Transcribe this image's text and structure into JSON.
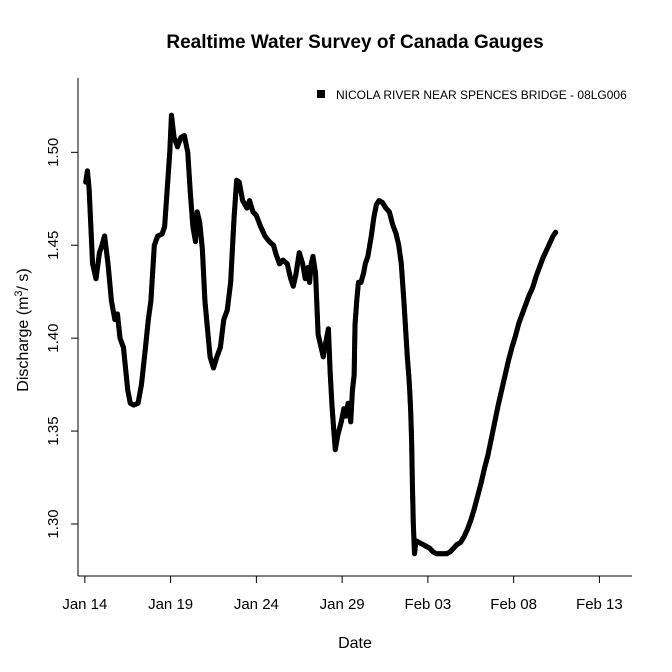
{
  "chart_data": {
    "type": "scatter",
    "title": "Realtime Water Survey of Canada Gauges",
    "xlabel": "Date",
    "ylabel": {
      "prefix": "Discharge (m",
      "superscript": "3",
      "suffix": "/ s)"
    },
    "legend": {
      "position": "top-right",
      "entries": [
        "NICOLA RIVER NEAR SPENCES BRIDGE - 08LG006"
      ]
    },
    "grid": false,
    "x_axis": {
      "start_date": "2014-01-14",
      "xlim": [
        -0.4,
        31.9
      ],
      "ticks": [
        0,
        5,
        10,
        15,
        20,
        25,
        30
      ],
      "tick_labels": [
        "Jan 14",
        "Jan 19",
        "Jan 24",
        "Jan 29",
        "Feb 03",
        "Feb 08",
        "Feb 13"
      ]
    },
    "y_axis": {
      "ylim": [
        1.272,
        1.54
      ],
      "ticks": [
        1.3,
        1.35,
        1.4,
        1.45,
        1.5
      ],
      "tick_labels": [
        "1.30",
        "1.35",
        "1.40",
        "1.45",
        "1.50"
      ]
    },
    "series": [
      {
        "name": "NICOLA RIVER NEAR SPENCES BRIDGE - 08LG006",
        "color": "#000000",
        "points": [
          [
            0.05,
            1.484
          ],
          [
            0.15,
            1.49
          ],
          [
            0.25,
            1.48
          ],
          [
            0.45,
            1.44
          ],
          [
            0.65,
            1.432
          ],
          [
            0.85,
            1.446
          ],
          [
            1.0,
            1.45
          ],
          [
            1.15,
            1.455
          ],
          [
            1.35,
            1.44
          ],
          [
            1.55,
            1.42
          ],
          [
            1.75,
            1.41
          ],
          [
            1.9,
            1.413
          ],
          [
            2.05,
            1.4
          ],
          [
            2.25,
            1.395
          ],
          [
            2.5,
            1.372
          ],
          [
            2.65,
            1.365
          ],
          [
            2.85,
            1.364
          ],
          [
            3.1,
            1.365
          ],
          [
            3.3,
            1.375
          ],
          [
            3.5,
            1.392
          ],
          [
            3.7,
            1.41
          ],
          [
            3.85,
            1.42
          ],
          [
            4.05,
            1.45
          ],
          [
            4.25,
            1.455
          ],
          [
            4.5,
            1.456
          ],
          [
            4.65,
            1.46
          ],
          [
            4.8,
            1.48
          ],
          [
            4.95,
            1.5
          ],
          [
            5.05,
            1.52
          ],
          [
            5.2,
            1.508
          ],
          [
            5.4,
            1.503
          ],
          [
            5.6,
            1.508
          ],
          [
            5.8,
            1.509
          ],
          [
            6.0,
            1.5
          ],
          [
            6.15,
            1.478
          ],
          [
            6.3,
            1.46
          ],
          [
            6.45,
            1.452
          ],
          [
            6.55,
            1.468
          ],
          [
            6.7,
            1.462
          ],
          [
            6.85,
            1.448
          ],
          [
            7.0,
            1.42
          ],
          [
            7.15,
            1.405
          ],
          [
            7.3,
            1.39
          ],
          [
            7.5,
            1.384
          ],
          [
            7.7,
            1.39
          ],
          [
            7.9,
            1.395
          ],
          [
            8.1,
            1.41
          ],
          [
            8.3,
            1.415
          ],
          [
            8.5,
            1.43
          ],
          [
            8.7,
            1.465
          ],
          [
            8.85,
            1.485
          ],
          [
            9.0,
            1.484
          ],
          [
            9.2,
            1.474
          ],
          [
            9.45,
            1.47
          ],
          [
            9.6,
            1.474
          ],
          [
            9.8,
            1.468
          ],
          [
            10.0,
            1.466
          ],
          [
            10.25,
            1.46
          ],
          [
            10.5,
            1.455
          ],
          [
            10.75,
            1.452
          ],
          [
            11.0,
            1.45
          ],
          [
            11.15,
            1.445
          ],
          [
            11.35,
            1.44
          ],
          [
            11.55,
            1.442
          ],
          [
            11.8,
            1.44
          ],
          [
            12.0,
            1.432
          ],
          [
            12.15,
            1.428
          ],
          [
            12.3,
            1.434
          ],
          [
            12.5,
            1.446
          ],
          [
            12.7,
            1.44
          ],
          [
            12.85,
            1.432
          ],
          [
            13.0,
            1.438
          ],
          [
            13.1,
            1.43
          ],
          [
            13.2,
            1.44
          ],
          [
            13.3,
            1.444
          ],
          [
            13.45,
            1.435
          ],
          [
            13.6,
            1.402
          ],
          [
            13.75,
            1.396
          ],
          [
            13.9,
            1.39
          ],
          [
            14.05,
            1.398
          ],
          [
            14.2,
            1.405
          ],
          [
            14.3,
            1.382
          ],
          [
            14.4,
            1.365
          ],
          [
            14.5,
            1.352
          ],
          [
            14.6,
            1.34
          ],
          [
            14.75,
            1.348
          ],
          [
            14.95,
            1.355
          ],
          [
            15.1,
            1.362
          ],
          [
            15.2,
            1.358
          ],
          [
            15.35,
            1.365
          ],
          [
            15.5,
            1.355
          ],
          [
            15.6,
            1.372
          ],
          [
            15.7,
            1.38
          ],
          [
            15.75,
            1.407
          ],
          [
            15.85,
            1.42
          ],
          [
            15.95,
            1.43
          ],
          [
            16.1,
            1.43
          ],
          [
            16.25,
            1.435
          ],
          [
            16.35,
            1.44
          ],
          [
            16.5,
            1.444
          ],
          [
            16.7,
            1.455
          ],
          [
            16.85,
            1.465
          ],
          [
            17.0,
            1.472
          ],
          [
            17.15,
            1.474
          ],
          [
            17.35,
            1.473
          ],
          [
            17.55,
            1.47
          ],
          [
            17.75,
            1.468
          ],
          [
            17.95,
            1.461
          ],
          [
            18.15,
            1.456
          ],
          [
            18.3,
            1.45
          ],
          [
            18.45,
            1.44
          ],
          [
            18.6,
            1.42
          ],
          [
            18.7,
            1.405
          ],
          [
            18.8,
            1.39
          ],
          [
            18.9,
            1.378
          ],
          [
            18.95,
            1.37
          ],
          [
            19.0,
            1.36
          ],
          [
            19.05,
            1.345
          ],
          [
            19.1,
            1.32
          ],
          [
            19.15,
            1.3
          ],
          [
            19.22,
            1.284
          ],
          [
            19.3,
            1.291
          ],
          [
            19.5,
            1.29
          ],
          [
            19.7,
            1.289
          ],
          [
            19.9,
            1.288
          ],
          [
            20.1,
            1.287
          ],
          [
            20.3,
            1.285
          ],
          [
            20.5,
            1.284
          ],
          [
            20.7,
            1.284
          ],
          [
            20.9,
            1.284
          ],
          [
            21.1,
            1.284
          ],
          [
            21.3,
            1.285
          ],
          [
            21.5,
            1.287
          ],
          [
            21.7,
            1.289
          ],
          [
            21.9,
            1.29
          ],
          [
            22.1,
            1.293
          ],
          [
            22.3,
            1.297
          ],
          [
            22.5,
            1.302
          ],
          [
            22.7,
            1.308
          ],
          [
            22.9,
            1.315
          ],
          [
            23.1,
            1.322
          ],
          [
            23.3,
            1.33
          ],
          [
            23.5,
            1.337
          ],
          [
            23.7,
            1.346
          ],
          [
            23.9,
            1.355
          ],
          [
            24.1,
            1.364
          ],
          [
            24.3,
            1.372
          ],
          [
            24.5,
            1.38
          ],
          [
            24.7,
            1.388
          ],
          [
            24.9,
            1.395
          ],
          [
            25.1,
            1.401
          ],
          [
            25.3,
            1.408
          ],
          [
            25.5,
            1.413
          ],
          [
            25.7,
            1.418
          ],
          [
            25.9,
            1.423
          ],
          [
            26.1,
            1.427
          ],
          [
            26.3,
            1.433
          ],
          [
            26.5,
            1.438
          ],
          [
            26.7,
            1.443
          ],
          [
            26.9,
            1.447
          ],
          [
            27.1,
            1.451
          ],
          [
            27.3,
            1.455
          ],
          [
            27.45,
            1.457
          ]
        ]
      }
    ]
  }
}
